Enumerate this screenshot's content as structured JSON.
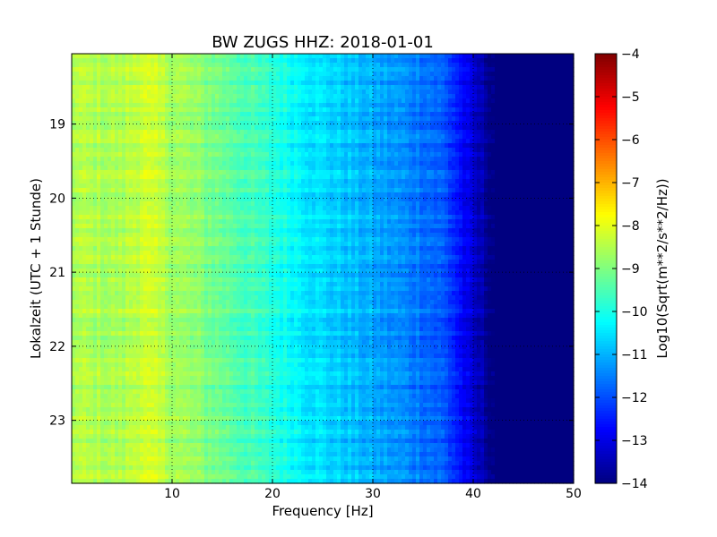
{
  "chart_data": {
    "type": "heatmap",
    "title": "BW ZUGS HHZ: 2018-01-01",
    "xlabel": "Frequency [Hz]",
    "ylabel": "Lokalzeit (UTC + 1 Stunde)",
    "xlim": [
      0,
      50
    ],
    "ylim": [
      18.05,
      23.85
    ],
    "y_inverted": true,
    "x_ticks": [
      10,
      20,
      30,
      40,
      50
    ],
    "y_ticks": [
      19,
      20,
      21,
      22,
      23
    ],
    "grid": true,
    "colorbar": {
      "label": "Log10(Sqrt(m**2/s**2/Hz))",
      "range": [
        -14,
        -4
      ],
      "ticks": [
        -4,
        -5,
        -6,
        -7,
        -8,
        -9,
        -10,
        -11,
        -12,
        -13,
        -14
      ],
      "colormap": "jet"
    },
    "profile": {
      "frequency_hz": [
        0,
        5,
        7,
        10,
        15,
        20,
        25,
        30,
        35,
        37,
        38,
        39,
        40,
        41,
        42,
        50
      ],
      "log10_amplitude": [
        -8.5,
        -8.6,
        -8.2,
        -8.6,
        -9.2,
        -9.9,
        -10.6,
        -11.1,
        -11.6,
        -11.9,
        -12.3,
        -12.8,
        -13.3,
        -13.6,
        -14.0,
        -14.0
      ]
    }
  }
}
